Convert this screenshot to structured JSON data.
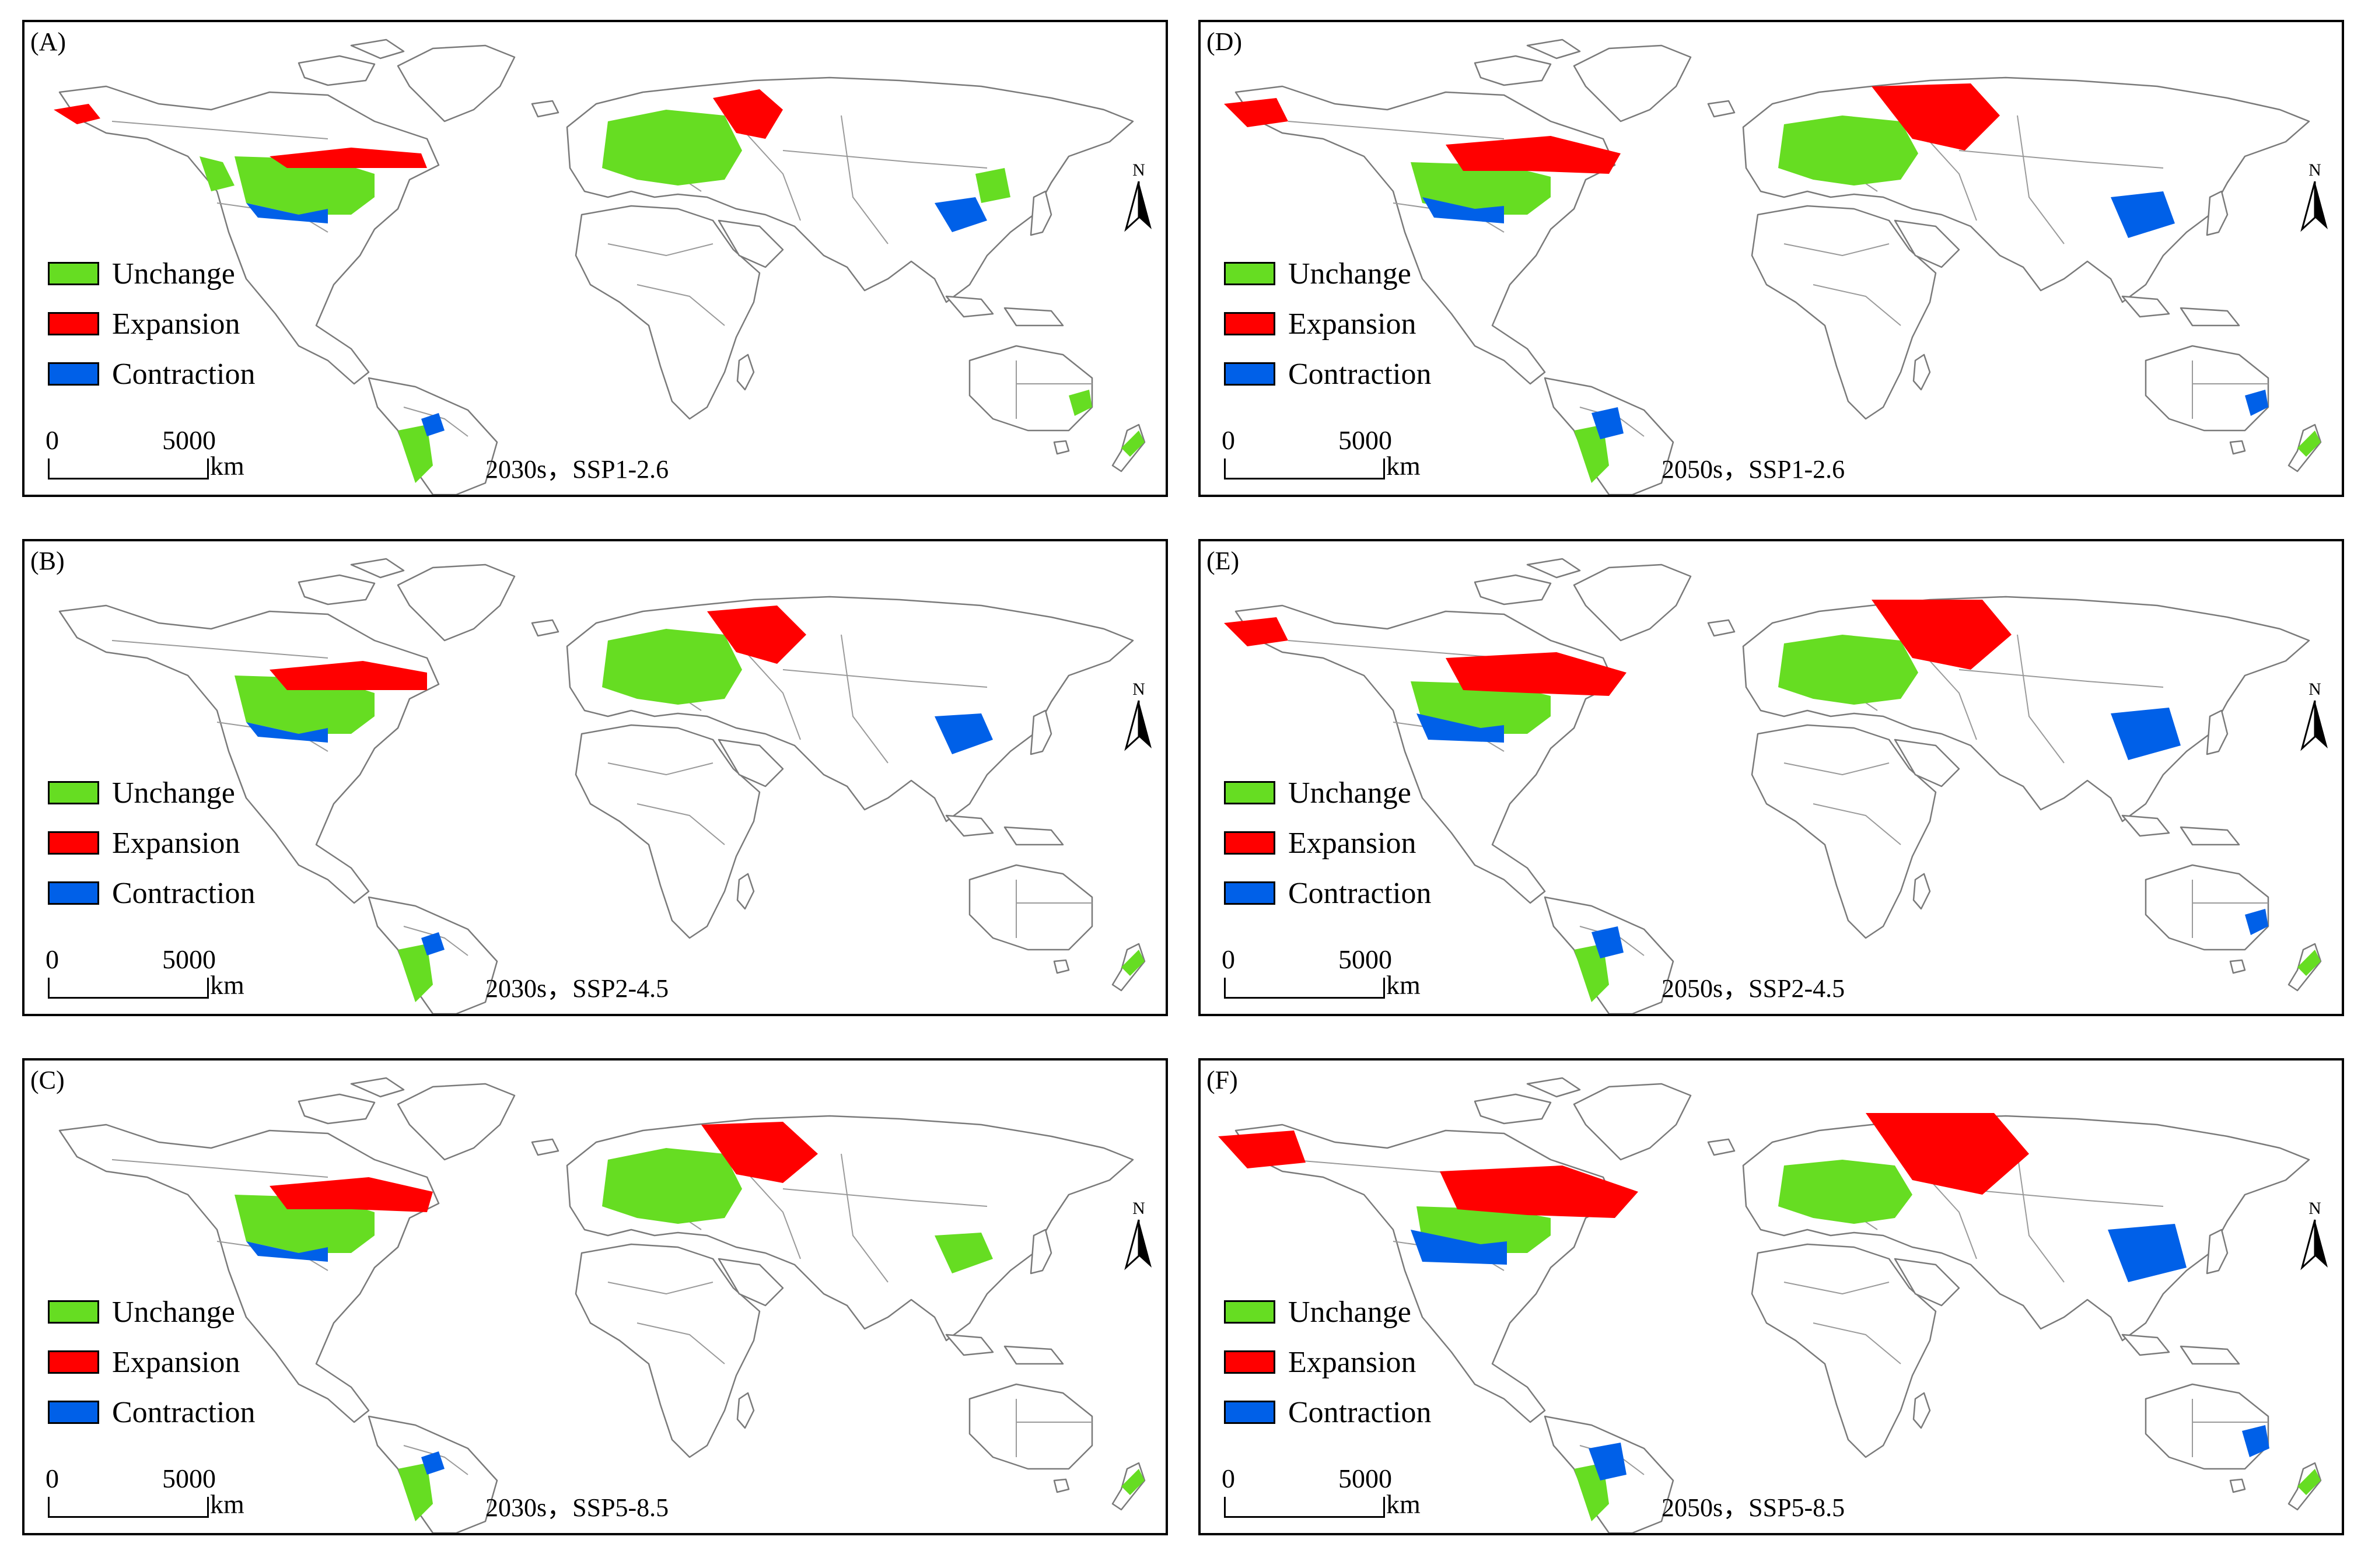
{
  "colors": {
    "unchange": "#66dd22",
    "expansion": "#ff0000",
    "contraction": "#0060e8",
    "land_fill": "#ffffff",
    "border": "#8a8a8a",
    "coast": "#6a6a6a"
  },
  "legend": {
    "unchange": "Unchange",
    "expansion": "Expansion",
    "contraction": "Contraction"
  },
  "scale": {
    "zero": "0",
    "value": "5000",
    "unit": "km"
  },
  "north_label": "N",
  "panels": [
    {
      "label": "(A)",
      "caption": "2030s，SSP1-2.6"
    },
    {
      "label": "(B)",
      "caption": "2030s，SSP2-4.5"
    },
    {
      "label": "(C)",
      "caption": "2030s，SSP5-8.5"
    },
    {
      "label": "(D)",
      "caption": "2050s，SSP1-2.6"
    },
    {
      "label": "(E)",
      "caption": "2050s，SSP2-4.5"
    },
    {
      "label": "(F)",
      "caption": "2050s，SSP5-8.5"
    }
  ]
}
